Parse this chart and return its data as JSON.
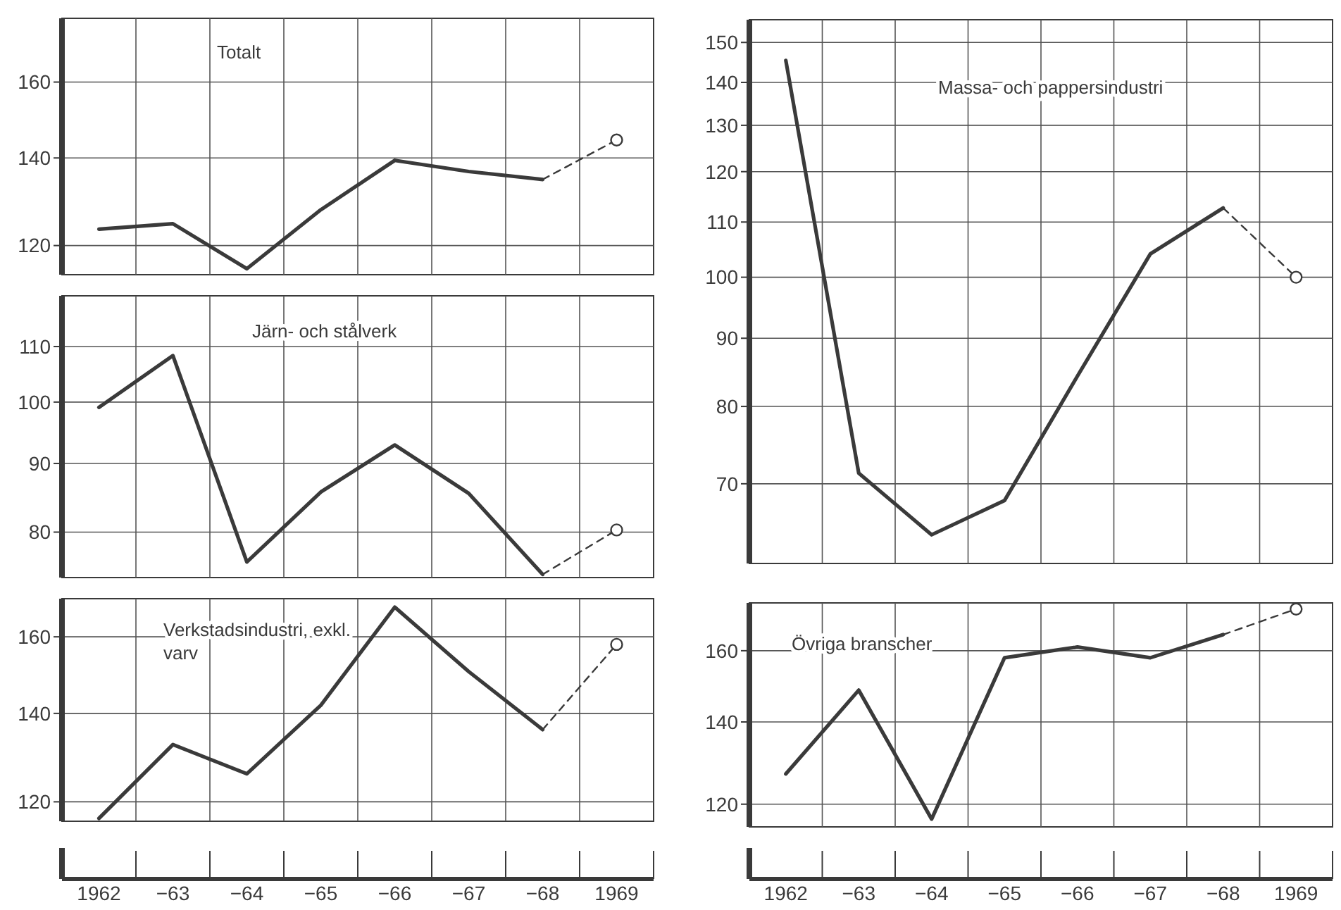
{
  "chart_data": [
    {
      "type": "line",
      "title": "Totalt",
      "categories": [
        "1962",
        "−63",
        "−64",
        "−65",
        "−66",
        "−67",
        "−68",
        "1969"
      ],
      "ylim": [
        114,
        179
      ],
      "yticks": [
        120,
        140,
        160
      ],
      "log": true,
      "grid": true,
      "tick_labels": "y",
      "series": [
        {
          "color": "#3a3a3a",
          "line_style": "solid",
          "values": [
            123.5,
            124.7,
            115.2,
            127.8,
            139.4,
            136.7,
            134.8,
            null
          ]
        },
        {
          "color": "#3a3a3a",
          "line_style": "dashed",
          "values": [
            null,
            null,
            null,
            null,
            null,
            null,
            134.8,
            144.5
          ]
        },
        {
          "type": "scatter",
          "color": "#3a3a3a",
          "marker": "circle",
          "values": [
            null,
            null,
            null,
            null,
            null,
            null,
            null,
            144.5
          ]
        }
      ]
    },
    {
      "type": "line",
      "title": "Järn- och stålverk",
      "categories": [
        "1962",
        "−63",
        "−64",
        "−65",
        "−66",
        "−67",
        "−68",
        "1969"
      ],
      "ylim": [
        74,
        120
      ],
      "yticks": [
        80,
        90,
        100,
        110
      ],
      "log": true,
      "grid": true,
      "tick_labels": "y",
      "series": [
        {
          "color": "#3a3a3a",
          "line_style": "solid",
          "values": [
            99.1,
            108.3,
            76.0,
            85.7,
            92.9,
            85.5,
            74.4,
            null
          ]
        },
        {
          "color": "#3a3a3a",
          "line_style": "dashed",
          "values": [
            null,
            null,
            null,
            null,
            null,
            null,
            74.4,
            80.3
          ]
        },
        {
          "type": "scatter",
          "color": "#3a3a3a",
          "marker": "circle",
          "values": [
            null,
            null,
            null,
            null,
            null,
            null,
            null,
            80.3
          ]
        }
      ]
    },
    {
      "type": "line",
      "title": "Verkstadsindustri, exkl. varv",
      "categories": [
        "1962",
        "−63",
        "−64",
        "−65",
        "−66",
        "−67",
        "−68",
        "1969"
      ],
      "ylim": [
        116,
        171
      ],
      "yticks": [
        120,
        140,
        160
      ],
      "log": true,
      "grid": true,
      "series": [
        {
          "color": "#3a3a3a",
          "line_style": "solid",
          "values": [
            116.6,
            132.6,
            126.0,
            142.0,
            168.5,
            150.6,
            136.1,
            null
          ]
        },
        {
          "color": "#3a3a3a",
          "line_style": "dashed",
          "values": [
            null,
            null,
            null,
            null,
            null,
            null,
            136.1,
            157.9
          ]
        },
        {
          "type": "scatter",
          "color": "#3a3a3a",
          "marker": "circle",
          "values": [
            null,
            null,
            null,
            null,
            null,
            null,
            null,
            157.9
          ]
        }
      ]
    },
    {
      "type": "line",
      "title": "Massa- och pappersindustri",
      "categories": [
        "1962",
        "−63",
        "−64",
        "−65",
        "−66",
        "−67",
        "−68",
        "1969"
      ],
      "ylim": [
        61,
        156
      ],
      "yticks": [
        70,
        80,
        90,
        100,
        110,
        120,
        130,
        140,
        150
      ],
      "log": true,
      "grid": true,
      "tick_labels": "y",
      "series": [
        {
          "color": "#3a3a3a",
          "line_style": "solid",
          "values": [
            145.4,
            71.3,
            64.1,
            68.0,
            84.3,
            104.1,
            112.7,
            null
          ]
        },
        {
          "color": "#3a3a3a",
          "line_style": "dashed",
          "values": [
            null,
            null,
            null,
            null,
            null,
            null,
            112.7,
            100
          ]
        },
        {
          "type": "scatter",
          "color": "#3a3a3a",
          "marker": "circle",
          "values": [
            null,
            null,
            null,
            null,
            null,
            null,
            null,
            100
          ]
        }
      ]
    },
    {
      "type": "line",
      "title": "Övriga branscher",
      "categories": [
        "1962",
        "−63",
        "−64",
        "−65",
        "−66",
        "−67",
        "−68",
        "1969"
      ],
      "ylim": [
        115,
        175
      ],
      "yticks": [
        120,
        140,
        160
      ],
      "log": true,
      "grid": true,
      "series": [
        {
          "color": "#3a3a3a",
          "line_style": "solid",
          "values": [
            127.0,
            148.6,
            116.7,
            157.9,
            161.1,
            157.9,
            164.9,
            null
          ]
        },
        {
          "color": "#3a3a3a",
          "line_style": "dashed",
          "values": [
            null,
            null,
            null,
            null,
            null,
            null,
            164.9,
            173
          ]
        },
        {
          "type": "scatter",
          "color": "#3a3a3a",
          "marker": "circle",
          "values": [
            null,
            null,
            null,
            null,
            null,
            null,
            null,
            173
          ]
        }
      ]
    }
  ]
}
